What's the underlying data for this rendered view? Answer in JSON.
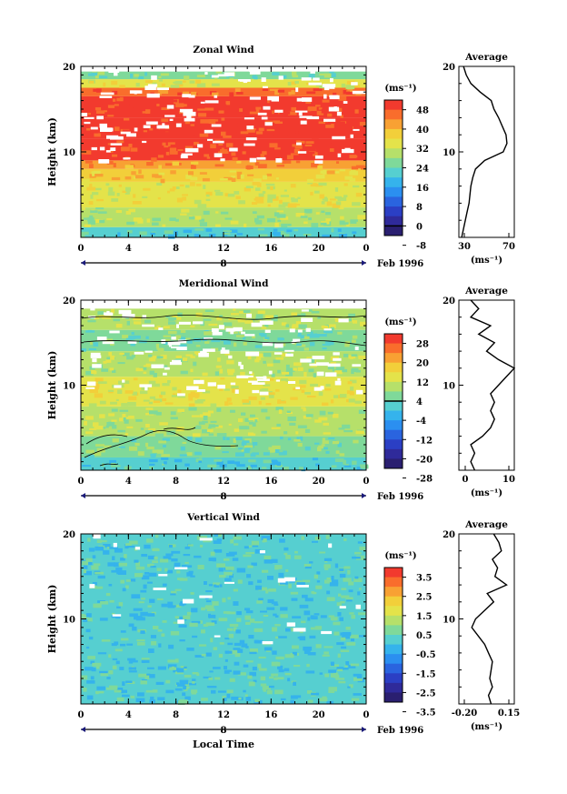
{
  "chart_data": [
    {
      "type": "heatmap",
      "title": "Zonal Wind",
      "ylabel": "Height (km)",
      "ylim": [
        0,
        20
      ],
      "y_ticks": [
        "10",
        "20"
      ],
      "x_ticks": [
        "0",
        "4",
        "8",
        "12",
        "16",
        "20",
        "0"
      ],
      "date_label": "8",
      "date_suffix": "Feb 1996",
      "colorbar": {
        "unit": "(ms⁻¹)",
        "labels": [
          "48",
          "40",
          "32",
          "24",
          "16",
          "8",
          "0",
          "-8"
        ],
        "colors": [
          "#f23a2e",
          "#f96d2c",
          "#f8a133",
          "#f2cf3a",
          "#e4e34a",
          "#b6e06a",
          "#7fd99a",
          "#56cfd0",
          "#35b3ec",
          "#2b8ff0",
          "#2a64df",
          "#2b3fc4",
          "#2f2a9a",
          "#2a1f70"
        ],
        "black_line_at": "0"
      },
      "bands": [
        {
          "from_km": 0,
          "to_km": 1.2,
          "color": "#56cfd0"
        },
        {
          "from_km": 1.2,
          "to_km": 3.5,
          "color": "#b6e06a"
        },
        {
          "from_km": 3.5,
          "to_km": 6.5,
          "color": "#e4e34a"
        },
        {
          "from_km": 6.5,
          "to_km": 8.0,
          "color": "#f2cf3a"
        },
        {
          "from_km": 8.0,
          "to_km": 9.0,
          "color": "#f8a133"
        },
        {
          "from_km": 9.0,
          "to_km": 11.5,
          "color": "#f23a2e"
        },
        {
          "from_km": 11.5,
          "to_km": 14.0,
          "color": "#f23a2e"
        },
        {
          "from_km": 14.0,
          "to_km": 16.5,
          "color": "#f23a2e"
        },
        {
          "from_km": 16.5,
          "to_km": 17.5,
          "color": "#f96d2c"
        },
        {
          "from_km": 17.5,
          "to_km": 18.5,
          "color": "#e4e34a"
        },
        {
          "from_km": 18.5,
          "to_km": 19.5,
          "color": "#7fd99a"
        }
      ],
      "average": {
        "title": "Average",
        "xlabel": "(ms⁻¹)",
        "x_ticks": [
          "30",
          "70"
        ],
        "y_ticks": [
          "10",
          "20"
        ],
        "xlim": [
          20,
          80
        ],
        "heights_km": [
          0,
          1,
          2,
          3,
          4,
          5,
          6,
          7,
          8,
          9,
          10,
          11,
          12,
          13,
          14,
          15,
          16,
          17,
          18,
          19,
          20
        ],
        "values": [
          23,
          25,
          27,
          29,
          31,
          32,
          33,
          35,
          38,
          48,
          68,
          72,
          71,
          67,
          63,
          58,
          55,
          43,
          33,
          28,
          25
        ]
      }
    },
    {
      "type": "heatmap",
      "title": "Meridional Wind",
      "ylabel": "Height (km)",
      "ylim": [
        0,
        20
      ],
      "y_ticks": [
        "10",
        "20"
      ],
      "x_ticks": [
        "0",
        "4",
        "8",
        "12",
        "16",
        "20",
        "0"
      ],
      "date_label": "8",
      "date_suffix": "Feb 1996",
      "colorbar": {
        "unit": "(ms⁻¹)",
        "labels": [
          "28",
          "20",
          "12",
          "4",
          "-4",
          "-12",
          "-20",
          "-28"
        ],
        "colors": [
          "#f23a2e",
          "#f96d2c",
          "#f8a133",
          "#f2cf3a",
          "#e4e34a",
          "#b6e06a",
          "#7fd99a",
          "#56cfd0",
          "#35b3ec",
          "#2b8ff0",
          "#2a64df",
          "#2b3fc4",
          "#2f2a9a",
          "#2a1f70"
        ],
        "black_line_at": "4"
      },
      "bands": [
        {
          "from_km": 0,
          "to_km": 1.5,
          "color": "#56cfd0"
        },
        {
          "from_km": 1.5,
          "to_km": 4.0,
          "color": "#7fd99a"
        },
        {
          "from_km": 4.0,
          "to_km": 7.5,
          "color": "#b6e06a"
        },
        {
          "from_km": 7.5,
          "to_km": 11.0,
          "color": "#e4e34a"
        },
        {
          "from_km": 11.0,
          "to_km": 14.0,
          "color": "#b6e06a"
        },
        {
          "from_km": 14.0,
          "to_km": 16.5,
          "color": "#7fd99a"
        },
        {
          "from_km": 16.5,
          "to_km": 19.0,
          "color": "#b6e06a"
        }
      ],
      "average": {
        "title": "Average",
        "xlabel": "(ms⁻¹)",
        "x_ticks": [
          "0",
          "10"
        ],
        "y_ticks": [
          "10",
          "20"
        ],
        "xlim": [
          -3,
          11
        ],
        "heights_km": [
          0,
          1,
          2,
          3,
          4,
          5,
          6,
          7,
          8,
          9,
          10,
          11,
          12,
          13,
          14,
          15,
          16,
          17,
          18,
          19,
          20
        ],
        "values": [
          1,
          0,
          1,
          0,
          3,
          5,
          6,
          5,
          6,
          5,
          7,
          9,
          11,
          7,
          4,
          6,
          2,
          5,
          0,
          2,
          0
        ]
      }
    },
    {
      "type": "heatmap",
      "title": "Vertical Wind",
      "ylabel": "Height (km)",
      "xlabel": "Local Time",
      "ylim": [
        0,
        20
      ],
      "y_ticks": [
        "10",
        "20"
      ],
      "x_ticks": [
        "0",
        "4",
        "8",
        "12",
        "16",
        "20",
        "0"
      ],
      "date_label": "8",
      "date_suffix": "Feb 1996",
      "colorbar": {
        "unit": "(ms⁻¹)",
        "labels": [
          "3.5",
          "2.5",
          "1.5",
          "0.5",
          "-0.5",
          "-1.5",
          "-2.5",
          "-3.5"
        ],
        "colors": [
          "#f23a2e",
          "#f96d2c",
          "#f8a133",
          "#f2cf3a",
          "#e4e34a",
          "#b6e06a",
          "#7fd99a",
          "#56cfd0",
          "#35b3ec",
          "#2b8ff0",
          "#2a64df",
          "#2b3fc4",
          "#2f2a9a",
          "#2a1f70"
        ],
        "black_line_at": null
      },
      "bands": [
        {
          "from_km": 0,
          "to_km": 20,
          "color": "#56cfd0"
        }
      ],
      "average": {
        "title": "Average",
        "xlabel": "(ms⁻¹)",
        "x_ticks": [
          "-0.20",
          "0.15"
        ],
        "y_ticks": [
          "10",
          "20"
        ],
        "xlim": [
          -0.25,
          0.18
        ],
        "heights_km": [
          0,
          1,
          2,
          3,
          4,
          5,
          6,
          7,
          8,
          9,
          10,
          11,
          12,
          13,
          14,
          15,
          16,
          17,
          18,
          19,
          20
        ],
        "values": [
          0,
          -0.02,
          0.01,
          -0.01,
          0,
          0.01,
          -0.02,
          -0.05,
          -0.1,
          -0.15,
          -0.12,
          -0.05,
          0.02,
          -0.03,
          0.12,
          0.03,
          0.05,
          0.01,
          0.08,
          0.06,
          0.02
        ]
      }
    }
  ]
}
